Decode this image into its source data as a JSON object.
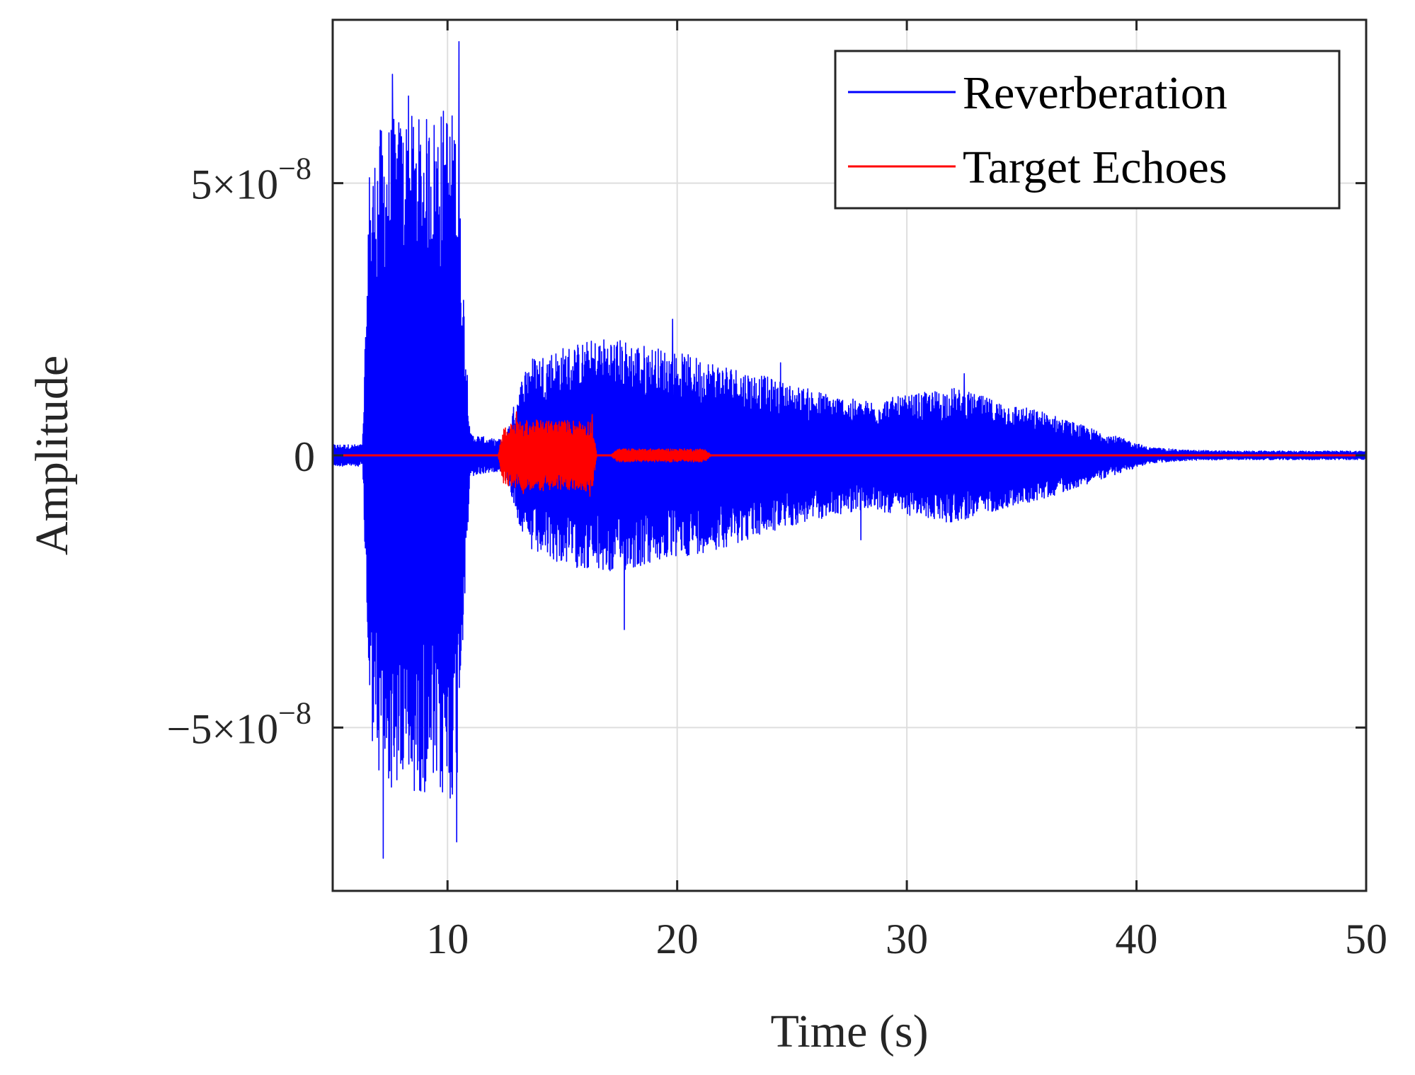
{
  "chart_data": {
    "type": "line",
    "xlabel": "Time (s)",
    "ylabel": "Amplitude",
    "xlim": [
      5,
      50
    ],
    "ylim": [
      -8e-08,
      8e-08
    ],
    "grid": true,
    "legend_position": "top-right",
    "x_ticks": [
      {
        "value": 10,
        "label": "10"
      },
      {
        "value": 20,
        "label": "20"
      },
      {
        "value": 30,
        "label": "30"
      },
      {
        "value": 40,
        "label": "40"
      },
      {
        "value": 50,
        "label": "50"
      }
    ],
    "y_ticks": [
      {
        "value": 5e-08,
        "mantissa": "5×10",
        "exponent": "−8"
      },
      {
        "value": 0,
        "mantissa": "0",
        "exponent": ""
      },
      {
        "value": -5e-08,
        "mantissa": "−5×10",
        "exponent": "−8"
      }
    ],
    "series": [
      {
        "name": "Reverberation",
        "color": "#0000ff",
        "envelope": {
          "t": [
            5,
            6.3,
            6.6,
            7,
            8,
            9,
            10,
            10.4,
            10.6,
            11,
            12,
            12.5,
            13,
            13.5,
            15,
            17,
            19,
            22,
            25,
            28,
            30,
            32,
            34,
            36,
            38,
            39.5,
            40.5,
            42,
            44,
            46,
            48,
            50
          ],
          "amp": [
            2e-09,
            2e-09,
            5e-08,
            6e-08,
            6.3e-08,
            6.2e-08,
            6.5e-08,
            6.2e-08,
            4e-08,
            4e-09,
            3e-09,
            3e-09,
            1.1e-08,
            1.8e-08,
            2e-08,
            2.2e-08,
            2e-08,
            1.7e-08,
            1.3e-08,
            1e-08,
            1.1e-08,
            1.25e-08,
            1e-08,
            8e-09,
            5e-09,
            3e-09,
            1.5e-09,
            1e-09,
            8e-10,
            8e-10,
            8e-10,
            8e-10
          ]
        },
        "peaks": [
          {
            "t": 6.6,
            "value": 5.1e-08
          },
          {
            "t": 7.6,
            "value": 7e-08
          },
          {
            "t": 8.3,
            "value": 6.6e-08
          },
          {
            "t": 10.5,
            "value": 7.6e-08
          },
          {
            "t": 7.2,
            "value": -7.4e-08
          },
          {
            "t": 10.4,
            "value": -7.1e-08
          },
          {
            "t": 17.7,
            "value": 3.4e-08
          },
          {
            "t": 17.7,
            "value": -3.2e-08
          },
          {
            "t": 19.8,
            "value": 2.5e-08
          },
          {
            "t": 24.5,
            "value": 1.7e-08
          },
          {
            "t": 32.5,
            "value": 1.5e-08
          },
          {
            "t": 28,
            "value": -1.55e-08
          }
        ]
      },
      {
        "name": "Target Echoes",
        "color": "#ff0000",
        "envelope": {
          "t": [
            5,
            12.2,
            12.4,
            13,
            14,
            15,
            16,
            16.3,
            16.5,
            17.1,
            17.4,
            19,
            21,
            21.2,
            21.5,
            50
          ],
          "amp": [
            0,
            0,
            5e-09,
            6.5e-09,
            6.5e-09,
            6.5e-09,
            6.5e-09,
            6.5e-09,
            0,
            0,
            1.2e-09,
            1.2e-09,
            1.2e-09,
            1.2e-09,
            0,
            0
          ]
        },
        "peaks": [
          {
            "t": 13,
            "value": 8e-09
          },
          {
            "t": 16.3,
            "value": 7.5e-09
          },
          {
            "t": 13.3,
            "value": -7e-09
          },
          {
            "t": 16.2,
            "value": -7.5e-09
          }
        ]
      }
    ]
  }
}
